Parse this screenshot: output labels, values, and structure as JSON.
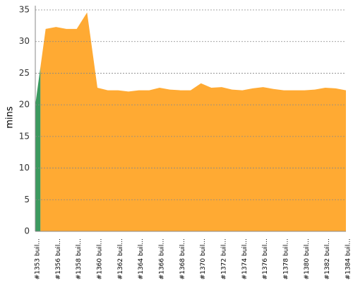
{
  "chart_data": {
    "type": "area",
    "y_label": "mins",
    "categories": [
      "#1353 buil...",
      null,
      "#1356 buil...",
      null,
      "#1358 buil...",
      null,
      "#1360 buil...",
      null,
      "#1362 buil...",
      null,
      "#1364 buil...",
      null,
      "#1366 buil...",
      null,
      "#1368 buil...",
      null,
      "#1370 buil...",
      null,
      "#1372 buil...",
      null,
      "#1374 buil...",
      null,
      "#1376 buil...",
      null,
      "#1378 buil...",
      null,
      "#1380 buil...",
      null,
      "#1382 buil...",
      null,
      "#1384 buil..."
    ],
    "series": [
      {
        "color": "#3c9a5f",
        "values": [
          20,
          null,
          null,
          null,
          null,
          null,
          null,
          null,
          null,
          null,
          null,
          null,
          null,
          null,
          null,
          null,
          null,
          null,
          null,
          null,
          null,
          null,
          null,
          null,
          null,
          null,
          null,
          null,
          null,
          null,
          null
        ]
      },
      {
        "color": "#ffaa33",
        "values": [
          null,
          32,
          32.3,
          32,
          32,
          34.6,
          22.7,
          22.3,
          22.3,
          22.1,
          22.3,
          22.3,
          22.7,
          22.4,
          22.3,
          22.3,
          23.4,
          22.7,
          22.8,
          22.4,
          22.3,
          22.6,
          22.8,
          22.5,
          22.3,
          22.3,
          22.3,
          22.4,
          22.7,
          22.6,
          22.3
        ]
      }
    ],
    "ylim": [
      0,
      35
    ],
    "yticks": [
      0,
      5,
      10,
      15,
      20,
      25,
      30,
      35
    ],
    "grid": true
  }
}
